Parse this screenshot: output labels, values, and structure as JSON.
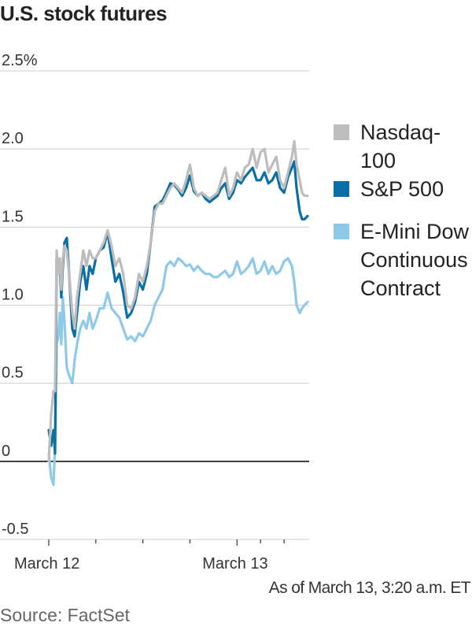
{
  "title": "U.S. stock futures",
  "note": "As of March 13, 3:20 a.m. ET",
  "source": "Source: FactSet",
  "colors": {
    "nasdaq": "#bdbdbd",
    "sp500": "#0a6fa5",
    "dow": "#8ec9ea",
    "grid": "#cccccc",
    "zero": "#000000"
  },
  "chart_data": {
    "type": "line",
    "title": "U.S. stock futures",
    "xlabel": "",
    "ylabel": "",
    "ylim": [
      -0.5,
      2.5
    ],
    "y_ticks": [
      {
        "value": -0.5,
        "label": "-0.5"
      },
      {
        "value": 0,
        "label": "0"
      },
      {
        "value": 0.5,
        "label": "0.5"
      },
      {
        "value": 1.0,
        "label": "1.0"
      },
      {
        "value": 1.5,
        "label": "1.5"
      },
      {
        "value": 2.0,
        "label": "2.0"
      },
      {
        "value": 2.5,
        "label": "2.5%"
      }
    ],
    "x_ticks": [
      {
        "pos": 0,
        "label": "March 12"
      },
      {
        "pos": 6,
        "label": ""
      },
      {
        "pos": 12,
        "label": ""
      },
      {
        "pos": 18,
        "label": ""
      },
      {
        "pos": 24,
        "label": "March 13"
      },
      {
        "pos": 27,
        "label": ""
      },
      {
        "pos": 30,
        "label": ""
      }
    ],
    "x_range": [
      -0.2,
      33.2
    ],
    "grid": true,
    "legend_position": "right",
    "series": [
      {
        "name": "Nasdaq-100",
        "color_key": "nasdaq",
        "x": [
          0,
          0.3,
          0.6,
          0.8,
          1.0,
          1.2,
          1.4,
          1.6,
          1.8,
          2.0,
          2.3,
          2.6,
          3.0,
          3.3,
          3.6,
          4.0,
          4.4,
          4.8,
          5.2,
          5.6,
          6.0,
          6.5,
          7.0,
          7.5,
          8.0,
          8.5,
          9.0,
          9.5,
          10.0,
          10.5,
          11.0,
          11.5,
          12.0,
          12.5,
          13.0,
          13.5,
          14.0,
          14.5,
          15.0,
          15.5,
          16.0,
          16.5,
          17.0,
          17.5,
          18.0,
          18.5,
          19.0,
          19.5,
          20.0,
          20.5,
          21.0,
          21.5,
          22.0,
          22.5,
          23.0,
          23.5,
          24.0,
          24.5,
          25.0,
          25.5,
          26.0,
          26.5,
          27.0,
          27.5,
          28.0,
          28.5,
          29.0,
          29.5,
          30.0,
          30.5,
          31.0,
          31.3,
          31.6,
          32.0,
          32.3,
          32.6,
          33.0
        ],
        "values": [
          0.0,
          0.3,
          0.45,
          0.45,
          1.35,
          1.2,
          1.3,
          1.1,
          1.3,
          1.38,
          1.35,
          1.2,
          0.95,
          0.85,
          1.05,
          1.2,
          1.35,
          1.25,
          1.35,
          1.3,
          1.3,
          1.35,
          1.4,
          1.48,
          1.38,
          1.25,
          1.3,
          1.2,
          1.0,
          0.98,
          1.05,
          1.2,
          1.15,
          1.25,
          1.4,
          1.6,
          1.65,
          1.65,
          1.7,
          1.75,
          1.78,
          1.75,
          1.72,
          1.8,
          1.9,
          1.75,
          1.7,
          1.72,
          1.7,
          1.68,
          1.7,
          1.72,
          1.8,
          1.88,
          1.7,
          1.75,
          1.85,
          1.8,
          1.88,
          1.9,
          2.0,
          1.88,
          1.98,
          2.0,
          1.85,
          1.9,
          1.95,
          1.8,
          1.75,
          1.85,
          1.95,
          2.05,
          1.9,
          1.8,
          1.72,
          1.7,
          1.7
        ]
      },
      {
        "name": "S&P 500",
        "color_key": "sp500",
        "x": [
          0,
          0.3,
          0.6,
          0.8,
          1.0,
          1.2,
          1.4,
          1.6,
          1.8,
          2.0,
          2.3,
          2.6,
          3.0,
          3.3,
          3.6,
          4.0,
          4.4,
          4.8,
          5.2,
          5.6,
          6.0,
          6.5,
          7.0,
          7.5,
          8.0,
          8.5,
          9.0,
          9.5,
          10.0,
          10.5,
          11.0,
          11.5,
          12.0,
          12.5,
          13.0,
          13.5,
          14.0,
          14.5,
          15.0,
          15.5,
          16.0,
          16.5,
          17.0,
          17.5,
          18.0,
          18.5,
          19.0,
          19.5,
          20.0,
          20.5,
          21.0,
          21.5,
          22.0,
          22.5,
          23.0,
          23.5,
          24.0,
          24.5,
          25.0,
          25.5,
          26.0,
          26.5,
          27.0,
          27.5,
          28.0,
          28.5,
          29.0,
          29.5,
          30.0,
          30.5,
          31.0,
          31.3,
          31.6,
          32.0,
          32.3,
          32.6,
          33.0
        ],
        "values": [
          0.2,
          0.1,
          0.2,
          0.05,
          1.3,
          1.2,
          1.25,
          1.05,
          1.25,
          1.4,
          1.43,
          1.2,
          0.85,
          0.8,
          0.95,
          1.15,
          1.25,
          1.1,
          1.25,
          1.2,
          1.3,
          1.35,
          1.37,
          1.47,
          1.3,
          1.15,
          1.2,
          1.08,
          0.92,
          0.95,
          1.02,
          1.15,
          1.1,
          1.2,
          1.4,
          1.63,
          1.65,
          1.67,
          1.72,
          1.78,
          1.77,
          1.74,
          1.7,
          1.75,
          1.83,
          1.73,
          1.7,
          1.72,
          1.68,
          1.66,
          1.68,
          1.7,
          1.75,
          1.78,
          1.68,
          1.72,
          1.8,
          1.78,
          1.82,
          1.85,
          1.88,
          1.8,
          1.8,
          1.85,
          1.78,
          1.8,
          1.85,
          1.75,
          1.72,
          1.82,
          1.88,
          1.92,
          1.75,
          1.6,
          1.55,
          1.55,
          1.57
        ]
      },
      {
        "name": "E-Mini Dow Continuous Contract",
        "color_key": "dow",
        "x": [
          0,
          0.3,
          0.6,
          0.8,
          1.0,
          1.2,
          1.4,
          1.6,
          1.8,
          2.0,
          2.3,
          2.6,
          3.0,
          3.3,
          3.6,
          4.0,
          4.4,
          4.8,
          5.2,
          5.6,
          6.0,
          6.5,
          7.0,
          7.5,
          8.0,
          8.5,
          9.0,
          9.5,
          10.0,
          10.5,
          11.0,
          11.5,
          12.0,
          12.5,
          13.0,
          13.5,
          14.0,
          14.5,
          15.0,
          15.5,
          16.0,
          16.5,
          17.0,
          17.5,
          18.0,
          18.5,
          19.0,
          19.5,
          20.0,
          20.5,
          21.0,
          21.5,
          22.0,
          22.5,
          23.0,
          23.5,
          24.0,
          24.5,
          25.0,
          25.5,
          26.0,
          26.5,
          27.0,
          27.5,
          28.0,
          28.5,
          29.0,
          29.5,
          30.0,
          30.5,
          31.0,
          31.3,
          31.6,
          32.0,
          32.3,
          32.6,
          33.0
        ],
        "values": [
          0.05,
          -0.1,
          -0.15,
          0.1,
          0.75,
          0.8,
          0.95,
          0.75,
          1.05,
          0.9,
          0.6,
          0.55,
          0.5,
          0.65,
          0.75,
          0.85,
          0.9,
          0.85,
          0.95,
          0.85,
          0.9,
          0.98,
          0.98,
          1.08,
          0.98,
          0.95,
          0.92,
          0.85,
          0.78,
          0.8,
          0.77,
          0.82,
          0.8,
          0.85,
          0.9,
          1.0,
          1.05,
          1.1,
          1.25,
          1.28,
          1.25,
          1.3,
          1.28,
          1.25,
          1.26,
          1.22,
          1.25,
          1.22,
          1.2,
          1.2,
          1.18,
          1.18,
          1.2,
          1.22,
          1.18,
          1.2,
          1.28,
          1.2,
          1.22,
          1.25,
          1.3,
          1.2,
          1.22,
          1.28,
          1.2,
          1.25,
          1.2,
          1.22,
          1.28,
          1.3,
          1.25,
          1.15,
          1.0,
          0.95,
          0.98,
          1.0,
          1.02
        ]
      }
    ]
  }
}
